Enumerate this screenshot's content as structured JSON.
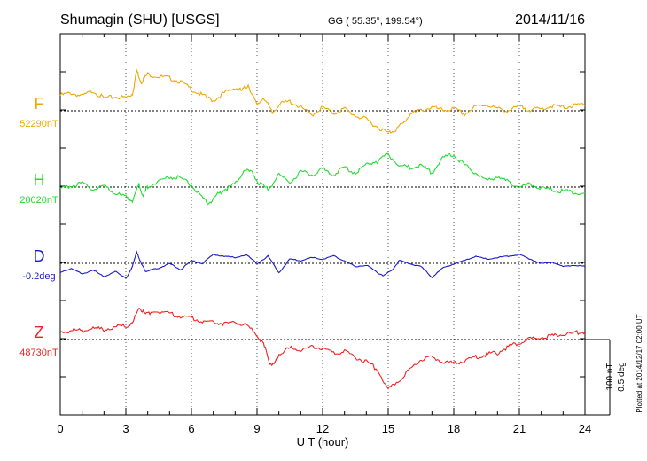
{
  "header": {
    "station": "Shumagin (SHU)  [USGS]",
    "coords": "GG ( 55.35°, 199.54°)",
    "date": "2014/11/16"
  },
  "footer": {
    "plotted": "Plotted at 2014/12/17 02:00 UT"
  },
  "chart_data": {
    "type": "line",
    "xlabel": "U T (hour)",
    "xlim": [
      0,
      24
    ],
    "x_ticks": [
      0,
      3,
      6,
      9,
      12,
      15,
      18,
      21,
      24
    ],
    "scale_bar": {
      "value_nT": 100,
      "value_deg": 0.5,
      "label_nT": "100 nT",
      "label_deg": "0.5 deg"
    },
    "grid": "dotted vertical at every 3 h; baseline per series",
    "series": [
      {
        "name": "F",
        "baseline_label": "52290nT",
        "color": "#f0a800",
        "unit": "nT",
        "baseline": 52290,
        "x": [
          0,
          0.5,
          1,
          1.5,
          2,
          2.5,
          3,
          3.3,
          3.5,
          3.7,
          4,
          4.5,
          5,
          5.5,
          6,
          6.5,
          7,
          7.5,
          8,
          8.3,
          8.6,
          9,
          9.3,
          9.7,
          10,
          10.5,
          11,
          11.5,
          12,
          12.5,
          13,
          13.5,
          14,
          14.5,
          15,
          15.3,
          15.7,
          16,
          16.5,
          17,
          17.5,
          18,
          18.5,
          19,
          19.5,
          20,
          20.5,
          21,
          21.5,
          22,
          22.5,
          23,
          23.5,
          24
        ],
        "values": [
          22,
          25,
          21,
          28,
          18,
          20,
          19,
          24,
          55,
          40,
          50,
          47,
          45,
          40,
          30,
          22,
          15,
          25,
          32,
          28,
          36,
          8,
          20,
          -2,
          10,
          14,
          6,
          -4,
          6,
          -2,
          4,
          -5,
          -10,
          -20,
          -28,
          -24,
          -15,
          -3,
          2,
          6,
          2,
          4,
          -3,
          7,
          10,
          4,
          2,
          7,
          3,
          4,
          8,
          6,
          8,
          11
        ]
      },
      {
        "name": "H",
        "baseline_label": "20020nT",
        "color": "#22dd33",
        "unit": "nT",
        "baseline": 20020,
        "x": [
          0,
          0.5,
          1,
          1.5,
          2,
          2.5,
          3,
          3.3,
          3.6,
          3.8,
          4,
          4.5,
          5,
          5.5,
          6,
          6.5,
          6.8,
          7.2,
          7.5,
          8,
          8.4,
          8.8,
          9.1,
          9.5,
          10,
          10.5,
          11,
          11.5,
          12,
          12.5,
          13,
          13.5,
          14,
          14.5,
          15,
          15.5,
          16,
          16.5,
          17,
          17.5,
          18,
          18.5,
          19,
          19.5,
          20,
          20.5,
          21,
          21.5,
          22,
          22.5,
          23,
          23.5,
          24
        ],
        "values": [
          -2,
          4,
          6,
          -1,
          3,
          -6,
          -12,
          -16,
          5,
          -10,
          2,
          10,
          15,
          14,
          4,
          -14,
          -20,
          -8,
          -2,
          5,
          24,
          20,
          6,
          -2,
          18,
          8,
          22,
          18,
          25,
          18,
          28,
          20,
          32,
          36,
          45,
          30,
          28,
          30,
          20,
          40,
          44,
          30,
          20,
          10,
          16,
          8,
          2,
          5,
          0,
          -2,
          -4,
          -5,
          -8
        ]
      },
      {
        "name": "D",
        "baseline_label": "-0.2deg",
        "color": "#1a1acc",
        "unit": "deg",
        "baseline": -0.2,
        "x": [
          0,
          0.5,
          1,
          1.5,
          2,
          2.5,
          3,
          3.3,
          3.5,
          3.7,
          3.9,
          4.2,
          4.5,
          5,
          5.5,
          6,
          6.5,
          7,
          7.5,
          8,
          8.5,
          9,
          9.5,
          10,
          10.5,
          11,
          11.5,
          12,
          12.5,
          13,
          13.5,
          14,
          14.5,
          14.8,
          15.2,
          15.5,
          16,
          16.5,
          17,
          17.5,
          18,
          18.5,
          19,
          19.5,
          20,
          20.5,
          21,
          21.5,
          22,
          22.5,
          23,
          23.5,
          24
        ],
        "values": [
          -0.06,
          -0.03,
          -0.07,
          -0.04,
          -0.09,
          -0.05,
          -0.1,
          -0.02,
          0.08,
          0.0,
          -0.05,
          -0.04,
          -0.03,
          0.0,
          -0.04,
          0.02,
          0.0,
          0.06,
          0.05,
          0.04,
          0.06,
          0.0,
          0.05,
          -0.06,
          0.03,
          0.02,
          0.04,
          0.03,
          0.05,
          0.02,
          -0.02,
          -0.01,
          -0.06,
          -0.08,
          -0.04,
          0.02,
          0.0,
          -0.02,
          -0.09,
          -0.03,
          0.0,
          0.02,
          0.05,
          0.03,
          0.04,
          0.05,
          0.06,
          0.03,
          0.0,
          0.01,
          -0.02,
          -0.01,
          -0.02
        ]
      },
      {
        "name": "Z",
        "baseline_label": "48730nT",
        "color": "#ee2222",
        "unit": "nT",
        "baseline": 48730,
        "x": [
          0,
          0.5,
          1,
          1.5,
          2,
          2.5,
          3,
          3.3,
          3.6,
          3.9,
          4.3,
          5,
          5.5,
          6,
          6.5,
          7,
          7.5,
          8,
          8.5,
          9,
          9.3,
          9.6,
          9.8,
          10,
          10.5,
          11,
          11.5,
          12,
          12.5,
          13,
          13.5,
          14,
          14.5,
          15,
          15.5,
          16,
          16.5,
          17,
          17.5,
          18,
          18.5,
          19,
          19.5,
          20,
          20.5,
          21,
          21.5,
          22,
          22.5,
          23,
          23.5,
          24
        ],
        "values": [
          10,
          14,
          13,
          16,
          15,
          18,
          20,
          22,
          45,
          35,
          40,
          36,
          32,
          30,
          26,
          25,
          22,
          24,
          20,
          8,
          -5,
          -30,
          -32,
          -18,
          -10,
          -12,
          -8,
          -10,
          -16,
          -14,
          -22,
          -28,
          -38,
          -65,
          -52,
          -38,
          -25,
          -22,
          -28,
          -30,
          -26,
          -22,
          -18,
          -16,
          -8,
          -2,
          2,
          4,
          6,
          8,
          10,
          12
        ]
      }
    ]
  }
}
